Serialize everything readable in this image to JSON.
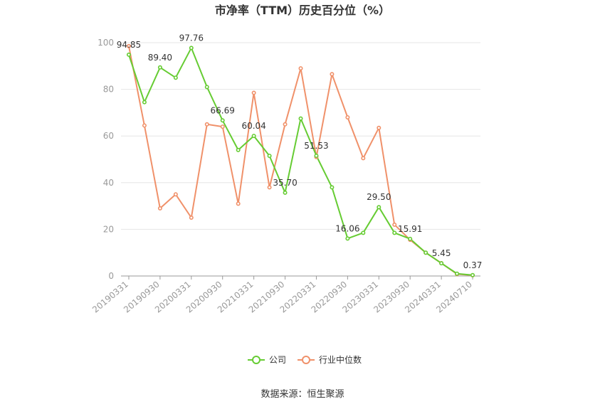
{
  "chart_data": {
    "type": "line",
    "title": "市净率（TTM）历史百分位（%）",
    "source": "数据来源：恒生聚源",
    "x": [
      "20190331",
      "20190630",
      "20190930",
      "20191231",
      "20200331",
      "20200630",
      "20200930",
      "20201231",
      "20210331",
      "20210630",
      "20210930",
      "20211231",
      "20220331",
      "20220630",
      "20220930",
      "20221231",
      "20230331",
      "20230630",
      "20230930",
      "20231231",
      "20240331",
      "20240630",
      "20240710"
    ],
    "x_tick_labels": [
      "20190331",
      "20190930",
      "20200331",
      "20200930",
      "20210331",
      "20210930",
      "20220331",
      "20220930",
      "20230331",
      "20230930",
      "20240331",
      "20240710"
    ],
    "y_ticks": [
      0,
      20,
      40,
      60,
      80,
      100
    ],
    "ylim": [
      0,
      100
    ],
    "grid": true,
    "legend_position": "bottom",
    "series": [
      {
        "name": "公司",
        "color": "#66cc33",
        "values": [
          94.85,
          74.5,
          89.4,
          85.0,
          97.76,
          81.0,
          66.69,
          54.0,
          60.04,
          51.5,
          35.7,
          67.5,
          51.53,
          38.0,
          16.06,
          18.5,
          29.5,
          18.5,
          15.91,
          10.0,
          5.45,
          1.0,
          0.37
        ],
        "labels": {
          "0": "94.85",
          "2": "89.40",
          "4": "97.76",
          "6": "66.69",
          "8": "60.04",
          "10": "35.70",
          "12": "51.53",
          "14": "16.06",
          "16": "29.50",
          "18": "15.91",
          "20": "5.45",
          "22": "0.37"
        }
      },
      {
        "name": "行业中位数",
        "color": "#f0916a",
        "values": [
          98.5,
          64.5,
          29.0,
          35.0,
          25.0,
          65.0,
          64.0,
          31.0,
          78.5,
          38.0,
          65.0,
          89.0,
          51.0,
          86.5,
          68.0,
          50.5,
          63.5,
          22.0,
          15.5,
          10.0,
          5.5,
          0.8,
          0.3
        ]
      }
    ]
  },
  "colors": {
    "axis": "#999999",
    "grid": "#e6e6e6",
    "bg": "#ffffff"
  }
}
